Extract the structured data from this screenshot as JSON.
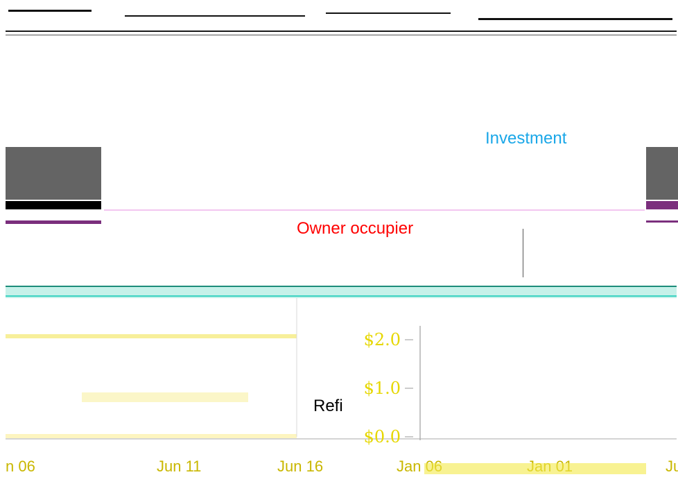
{
  "chart_data": {
    "type": "bar",
    "title": "",
    "xlabel": "",
    "ylabel": "",
    "y_tick_labels": [
      "$2.0",
      "$1.0",
      "$0.0"
    ],
    "x_tick_labels": [
      "n 06",
      "Jun 11",
      "Jun 16",
      "Jan 06",
      "Jan 01",
      "Ju"
    ],
    "series": [
      {
        "name": "Investment",
        "color": "#1aa7e8"
      },
      {
        "name": "Owner occupier",
        "color": "#ff0000"
      },
      {
        "name": "Refi",
        "color": "#000000"
      }
    ],
    "ylim": [
      0,
      2.0
    ],
    "grid": false
  },
  "colors": {
    "investment": "#1aa7e8",
    "owner_occupier": "#ff0000",
    "refi": "#000000",
    "axis_labels": "#e6d700",
    "teal_band": "#c6f1e9",
    "side_block": "#646464",
    "purple_strip": "#7b2f7d"
  }
}
